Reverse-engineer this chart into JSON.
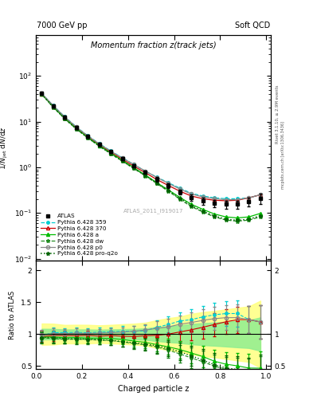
{
  "title_main": "Momentum fraction z(track jets)",
  "header_left": "7000 GeV pp",
  "header_right": "Soft QCD",
  "ylabel_main": "1/N$_{jet}$ dN/dz",
  "ylabel_ratio": "Ratio to ATLAS",
  "xlabel": "Charged particle z",
  "watermark": "ATLAS_2011_I919017",
  "right_label": "mcplots.cern.ch [arXiv:1306.3436]",
  "right_label2": "Rivet 3.1.10, ≥ 2.9M events",
  "z_values": [
    0.025,
    0.075,
    0.125,
    0.175,
    0.225,
    0.275,
    0.325,
    0.375,
    0.425,
    0.475,
    0.525,
    0.575,
    0.625,
    0.675,
    0.725,
    0.775,
    0.825,
    0.875,
    0.925,
    0.975
  ],
  "atlas_y": [
    42.0,
    22.0,
    12.5,
    7.5,
    4.8,
    3.2,
    2.2,
    1.55,
    1.1,
    0.78,
    0.55,
    0.4,
    0.29,
    0.22,
    0.185,
    0.165,
    0.155,
    0.155,
    0.175,
    0.21
  ],
  "atlas_yerr": [
    3.5,
    1.8,
    0.9,
    0.55,
    0.35,
    0.22,
    0.16,
    0.12,
    0.09,
    0.07,
    0.06,
    0.05,
    0.04,
    0.035,
    0.032,
    0.03,
    0.03,
    0.032,
    0.038,
    0.055
  ],
  "p359_y": [
    41.0,
    22.5,
    12.8,
    7.7,
    4.9,
    3.3,
    2.28,
    1.62,
    1.15,
    0.82,
    0.61,
    0.46,
    0.35,
    0.27,
    0.235,
    0.215,
    0.205,
    0.205,
    0.215,
    0.25
  ],
  "p370_y": [
    40.5,
    21.5,
    12.2,
    7.3,
    4.7,
    3.1,
    2.15,
    1.5,
    1.06,
    0.76,
    0.54,
    0.4,
    0.3,
    0.235,
    0.205,
    0.19,
    0.185,
    0.19,
    0.215,
    0.25
  ],
  "pa_y": [
    40.0,
    21.0,
    11.8,
    7.1,
    4.5,
    3.0,
    2.05,
    1.42,
    0.98,
    0.68,
    0.46,
    0.32,
    0.22,
    0.155,
    0.12,
    0.095,
    0.082,
    0.078,
    0.082,
    0.098
  ],
  "pdw_y": [
    39.5,
    20.5,
    11.5,
    6.9,
    4.4,
    2.9,
    1.98,
    1.36,
    0.94,
    0.65,
    0.44,
    0.3,
    0.2,
    0.138,
    0.105,
    0.082,
    0.07,
    0.066,
    0.07,
    0.082
  ],
  "pp0_y": [
    41.5,
    22.2,
    12.6,
    7.6,
    4.85,
    3.25,
    2.25,
    1.6,
    1.15,
    0.83,
    0.6,
    0.445,
    0.335,
    0.26,
    0.225,
    0.205,
    0.195,
    0.195,
    0.215,
    0.25
  ],
  "pproq2o_y": [
    39.8,
    20.8,
    11.6,
    6.95,
    4.42,
    2.92,
    1.99,
    1.37,
    0.95,
    0.66,
    0.45,
    0.31,
    0.21,
    0.145,
    0.11,
    0.086,
    0.073,
    0.069,
    0.073,
    0.087
  ],
  "atlas_color": "#000000",
  "p359_color": "#00ced1",
  "p370_color": "#cc0000",
  "pa_color": "#00bb00",
  "pdw_color": "#228B22",
  "pp0_color": "#888888",
  "pproq2o_color": "#006400",
  "shade_green": "#90EE90",
  "shade_yellow": "#FFFF80",
  "ylim_main": [
    0.009,
    800
  ],
  "ylim_ratio": [
    0.45,
    2.15
  ],
  "xlim": [
    0.0,
    1.02
  ]
}
